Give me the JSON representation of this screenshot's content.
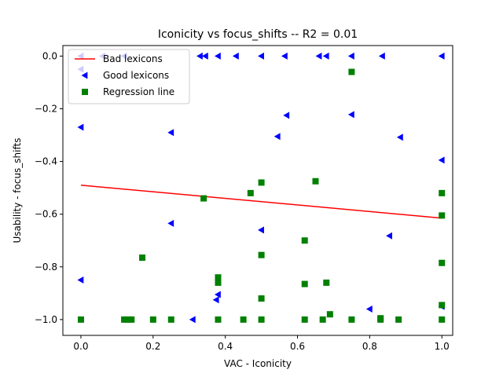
{
  "chart_data": {
    "type": "scatter",
    "title": "Iconicity  vs  focus_shifts -- R2 = 0.01",
    "xlabel": "VAC - Iconicity",
    "ylabel": "Usability - focus_shifts",
    "xlim": [
      -0.05,
      1.03
    ],
    "ylim": [
      -1.06,
      0.04
    ],
    "xticks": [
      0.0,
      0.2,
      0.4,
      0.6,
      0.8,
      1.0
    ],
    "xtick_labels": [
      "0.0",
      "0.2",
      "0.4",
      "0.6",
      "0.8",
      "1.0"
    ],
    "yticks": [
      0.0,
      -0.2,
      -0.4,
      -0.6,
      -0.8,
      -1.0
    ],
    "ytick_labels": [
      "0.0",
      "−0.2",
      "−0.4",
      "−0.6",
      "−0.8",
      "−1.0"
    ],
    "grid": false,
    "legend_position": "top-left",
    "series": [
      {
        "name": "Bad lexicons",
        "kind": "line",
        "color": "#ff0000",
        "points": [
          [
            0.0,
            -0.49
          ],
          [
            1.0,
            -0.615
          ]
        ]
      },
      {
        "name": "Good lexicons",
        "kind": "marker",
        "marker": "triangle-left",
        "color": "#0000ff",
        "points": [
          [
            0.0,
            0.0
          ],
          [
            0.0,
            -0.05
          ],
          [
            0.0,
            -0.27
          ],
          [
            0.0,
            -0.85
          ],
          [
            0.06,
            0.0
          ],
          [
            0.12,
            0.0
          ],
          [
            0.25,
            -0.29
          ],
          [
            0.25,
            -0.635
          ],
          [
            0.33,
            0.0
          ],
          [
            0.345,
            0.0
          ],
          [
            0.38,
            0.0
          ],
          [
            0.43,
            0.0
          ],
          [
            0.5,
            0.0
          ],
          [
            0.565,
            0.0
          ],
          [
            0.66,
            0.0
          ],
          [
            0.68,
            0.0
          ],
          [
            0.75,
            0.0
          ],
          [
            0.835,
            0.0
          ],
          [
            1.0,
            0.0
          ],
          [
            0.57,
            -0.225
          ],
          [
            0.545,
            -0.305
          ],
          [
            0.75,
            -0.222
          ],
          [
            0.885,
            -0.308
          ],
          [
            1.0,
            -0.395
          ],
          [
            0.5,
            -0.66
          ],
          [
            0.855,
            -0.682
          ],
          [
            0.375,
            -0.925
          ],
          [
            0.38,
            -0.905
          ],
          [
            0.31,
            -1.0
          ],
          [
            0.8,
            -0.96
          ],
          [
            1.0,
            -0.95
          ]
        ]
      },
      {
        "name": "Regression line",
        "kind": "marker",
        "marker": "square",
        "color": "#008000",
        "points": [
          [
            0.75,
            -0.06
          ],
          [
            0.65,
            -0.475
          ],
          [
            0.5,
            -0.48
          ],
          [
            0.47,
            -0.52
          ],
          [
            0.34,
            -0.54
          ],
          [
            1.0,
            -0.52
          ],
          [
            1.0,
            -0.605
          ],
          [
            0.17,
            -0.765
          ],
          [
            0.5,
            -0.755
          ],
          [
            0.62,
            -0.7
          ],
          [
            0.38,
            -0.84
          ],
          [
            0.38,
            -0.86
          ],
          [
            0.62,
            -0.865
          ],
          [
            0.68,
            -0.86
          ],
          [
            0.5,
            -0.92
          ],
          [
            1.0,
            -0.785
          ],
          [
            1.0,
            -0.945
          ],
          [
            0.69,
            -0.98
          ],
          [
            0.0,
            -1.0
          ],
          [
            0.12,
            -1.0
          ],
          [
            0.13,
            -1.0
          ],
          [
            0.14,
            -1.0
          ],
          [
            0.2,
            -1.0
          ],
          [
            0.25,
            -1.0
          ],
          [
            0.38,
            -1.0
          ],
          [
            0.45,
            -1.0
          ],
          [
            0.5,
            -1.0
          ],
          [
            0.62,
            -1.0
          ],
          [
            0.67,
            -1.0
          ],
          [
            0.75,
            -1.0
          ],
          [
            0.83,
            -1.0
          ],
          [
            0.83,
            -0.995
          ],
          [
            0.88,
            -1.0
          ],
          [
            1.0,
            -1.0
          ]
        ]
      }
    ]
  }
}
